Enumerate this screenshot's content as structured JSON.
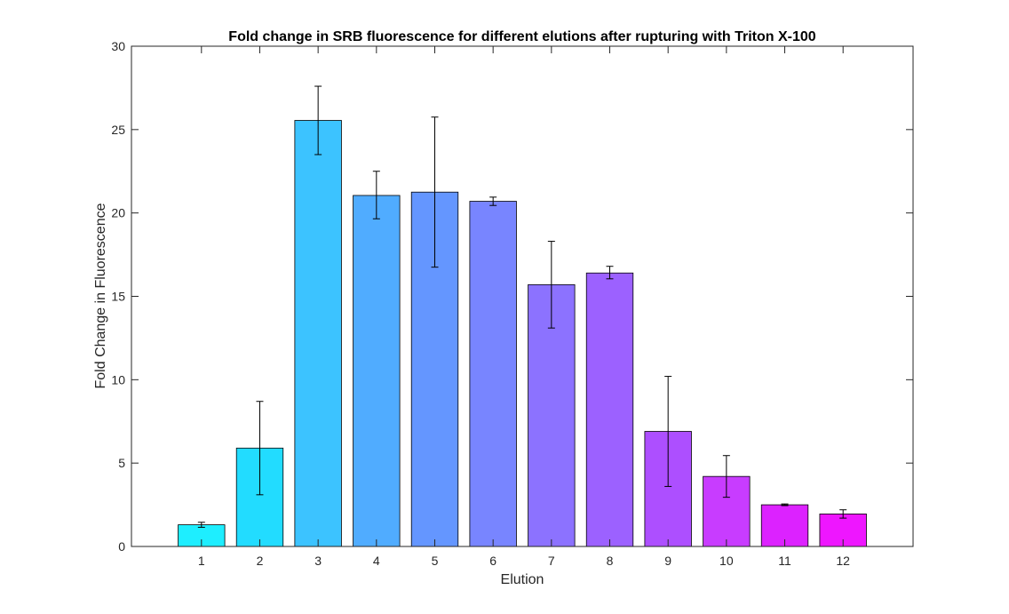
{
  "chart_data": {
    "type": "bar",
    "title": "Fold change in SRB fluorescence for different elutions after rupturing with Triton X-100",
    "xlabel": "Elution",
    "ylabel": "Fold Change in Fluorescence",
    "categories": [
      "1",
      "2",
      "3",
      "4",
      "5",
      "6",
      "7",
      "8",
      "9",
      "10",
      "11",
      "12"
    ],
    "values": [
      1.3,
      5.9,
      25.55,
      21.05,
      21.25,
      20.7,
      15.7,
      16.4,
      6.9,
      4.2,
      2.5,
      1.95
    ],
    "error_low": [
      1.15,
      3.1,
      23.5,
      19.65,
      16.75,
      20.45,
      13.1,
      16.05,
      3.6,
      2.95,
      2.45,
      1.7
    ],
    "error_high": [
      1.45,
      8.7,
      27.6,
      22.5,
      25.75,
      20.95,
      18.3,
      16.8,
      10.2,
      5.45,
      2.55,
      2.2
    ],
    "colors": [
      "#1eeeff",
      "#22dcff",
      "#3cc3ff",
      "#50acff",
      "#6496ff",
      "#7885ff",
      "#8c72ff",
      "#9c61ff",
      "#ad4fff",
      "#c83cff",
      "#dc22ff",
      "#ee16ff"
    ],
    "ylim": [
      0,
      30
    ],
    "yticks": [
      "0",
      "5",
      "10",
      "15",
      "20",
      "25",
      "30"
    ],
    "grid": false,
    "legend": "none"
  }
}
